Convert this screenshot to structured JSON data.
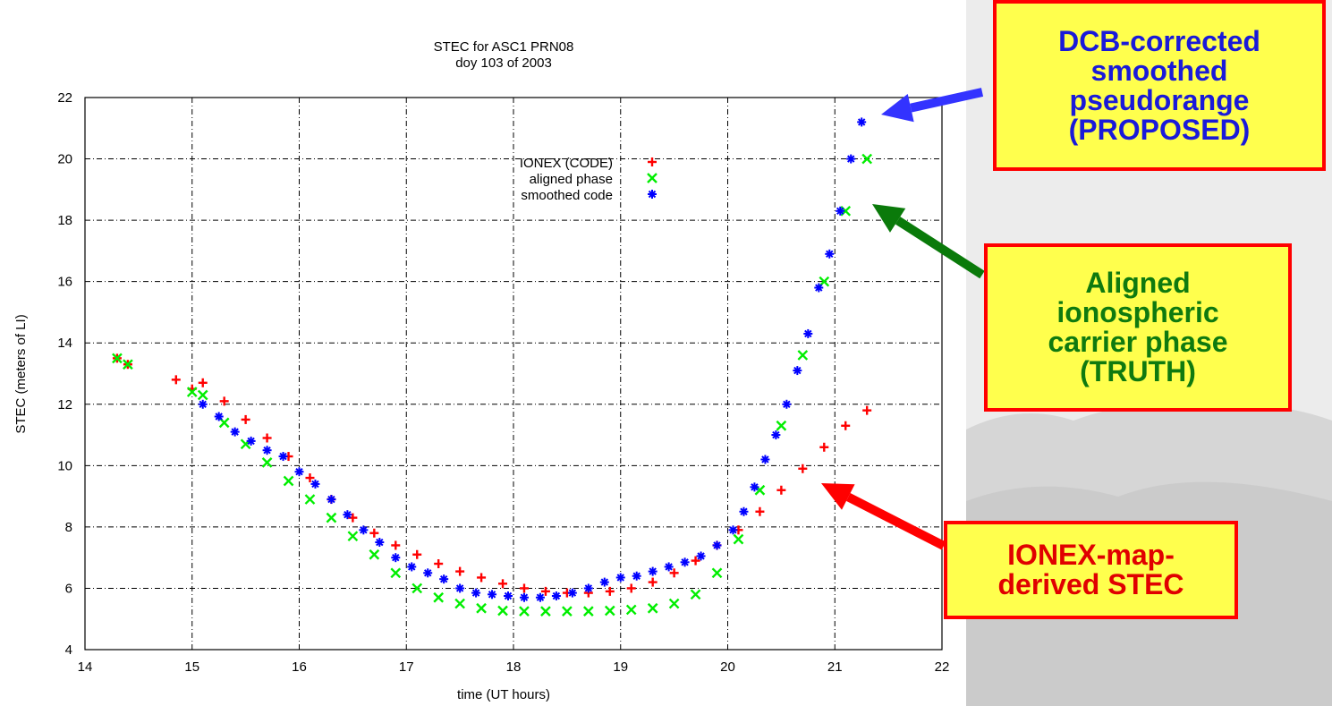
{
  "chart_data": {
    "type": "scatter",
    "title": "STEC for ASC1 PRN08",
    "subtitle": "doy 103 of 2003",
    "xlabel": "time (UT hours)",
    "ylabel": "STEC (meters of LI)",
    "xlim": [
      14,
      22
    ],
    "ylim": [
      4,
      22
    ],
    "xticks": [
      14,
      15,
      16,
      17,
      18,
      19,
      20,
      21,
      22
    ],
    "yticks": [
      4,
      6,
      8,
      10,
      12,
      14,
      16,
      18,
      20,
      22
    ],
    "grid": true,
    "legend_position": "top-center",
    "series": [
      {
        "name": "IONEX (CODE)",
        "marker": "+",
        "color": "#ff0000",
        "x": [
          14.3,
          14.4,
          14.85,
          15.0,
          15.1,
          15.3,
          15.5,
          15.7,
          15.9,
          16.1,
          16.3,
          16.5,
          16.7,
          16.9,
          17.1,
          17.3,
          17.5,
          17.7,
          17.9,
          18.1,
          18.3,
          18.5,
          18.7,
          18.9,
          19.1,
          19.3,
          19.5,
          19.7,
          19.9,
          20.1,
          20.3,
          20.5,
          20.7,
          20.9,
          21.1,
          21.3
        ],
        "y": [
          13.5,
          13.3,
          12.8,
          12.5,
          12.7,
          12.1,
          11.5,
          10.9,
          10.3,
          9.6,
          8.9,
          8.3,
          7.8,
          7.4,
          7.1,
          6.8,
          6.55,
          6.35,
          6.15,
          6.0,
          5.9,
          5.85,
          5.85,
          5.9,
          6.0,
          6.2,
          6.5,
          6.9,
          7.4,
          7.9,
          8.5,
          9.2,
          9.9,
          10.6,
          11.3,
          11.8
        ]
      },
      {
        "name": "aligned phase",
        "marker": "x",
        "color": "#00ee00",
        "x": [
          14.3,
          14.4,
          15.0,
          15.1,
          15.3,
          15.5,
          15.7,
          15.9,
          16.1,
          16.3,
          16.5,
          16.7,
          16.9,
          17.1,
          17.3,
          17.5,
          17.7,
          17.9,
          18.1,
          18.3,
          18.5,
          18.7,
          18.9,
          19.1,
          19.3,
          19.5,
          19.7,
          19.9,
          20.1,
          20.3,
          20.5,
          20.7,
          20.9,
          21.1,
          21.3
        ],
        "y": [
          13.5,
          13.3,
          12.4,
          12.3,
          11.4,
          10.7,
          10.1,
          9.5,
          8.9,
          8.3,
          7.7,
          7.1,
          6.5,
          6.0,
          5.7,
          5.5,
          5.35,
          5.27,
          5.25,
          5.25,
          5.25,
          5.25,
          5.27,
          5.3,
          5.35,
          5.5,
          5.8,
          6.5,
          7.6,
          9.2,
          11.3,
          13.6,
          16.0,
          18.3,
          20.0
        ]
      },
      {
        "name": "smoothed code",
        "marker": "*",
        "color": "#0000ff",
        "x": [
          15.1,
          15.25,
          15.4,
          15.55,
          15.7,
          15.85,
          16.0,
          16.15,
          16.3,
          16.45,
          16.6,
          16.75,
          16.9,
          17.05,
          17.2,
          17.35,
          17.5,
          17.65,
          17.8,
          17.95,
          18.1,
          18.25,
          18.4,
          18.55,
          18.7,
          18.85,
          19.0,
          19.15,
          19.3,
          19.45,
          19.6,
          19.75,
          19.9,
          20.05,
          20.15,
          20.25,
          20.35,
          20.45,
          20.55,
          20.65,
          20.75,
          20.85,
          20.95,
          21.05,
          21.15,
          21.25
        ],
        "y": [
          12.0,
          11.6,
          11.1,
          10.8,
          10.5,
          10.3,
          9.8,
          9.4,
          8.9,
          8.4,
          7.9,
          7.5,
          7.0,
          6.7,
          6.5,
          6.3,
          6.0,
          5.85,
          5.8,
          5.75,
          5.7,
          5.7,
          5.75,
          5.85,
          6.0,
          6.2,
          6.35,
          6.4,
          6.55,
          6.7,
          6.85,
          7.05,
          7.4,
          7.9,
          8.5,
          9.3,
          10.2,
          11.0,
          12.0,
          13.1,
          14.3,
          15.8,
          16.9,
          18.3,
          20.0,
          21.2
        ]
      }
    ]
  },
  "callouts": {
    "dcb": [
      "DCB-corrected",
      "smoothed",
      "pseudorange",
      "(PROPOSED)"
    ],
    "aligned": [
      "Aligned",
      "ionospheric",
      "carrier phase",
      "(TRUTH)"
    ],
    "ionex": [
      "IONEX-map-",
      "derived STEC"
    ]
  },
  "arrow_colors": {
    "dcb": "#3333ff",
    "aligned": "#0a7a0a",
    "ionex": "#ff0000"
  }
}
